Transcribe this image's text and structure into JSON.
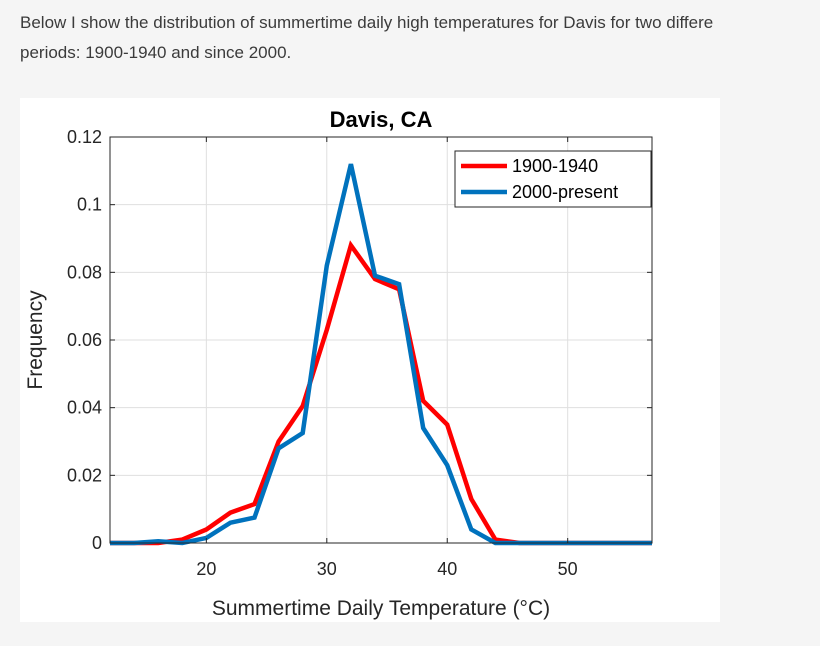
{
  "intro": {
    "line1": "Below I show the distribution of summertime daily high temperatures for Davis for two differe",
    "line2": "periods: 1900-1940 and since 2000."
  },
  "chart_data": {
    "type": "line",
    "title": "Davis, CA",
    "xlabel": "Summertime Daily Temperature (°C)",
    "ylabel": "Frequency",
    "xlim": [
      12,
      57
    ],
    "ylim": [
      0,
      0.12
    ],
    "xticks": [
      20,
      30,
      40,
      50
    ],
    "yticks": [
      0,
      0.02,
      0.04,
      0.06,
      0.08,
      0.1,
      0.12
    ],
    "ytick_labels": [
      "0",
      "0.02",
      "0.04",
      "0.06",
      "0.08",
      "0.1",
      "0.12"
    ],
    "grid": true,
    "legend_position": "top-right",
    "series": [
      {
        "name": "1900-1940",
        "color": "#ff0000",
        "x": [
          12,
          14,
          16,
          18,
          20,
          22,
          24,
          26,
          28,
          30,
          32,
          34,
          36,
          38,
          40,
          42,
          44,
          46,
          48,
          50,
          52,
          54,
          57
        ],
        "y": [
          0,
          0,
          0,
          0.001,
          0.004,
          0.009,
          0.0115,
          0.03,
          0.0405,
          0.063,
          0.088,
          0.078,
          0.075,
          0.042,
          0.035,
          0.013,
          0.001,
          0,
          0,
          0,
          0,
          0,
          0
        ]
      },
      {
        "name": "2000-present",
        "color": "#0072bd",
        "x": [
          12,
          14,
          16,
          18,
          20,
          22,
          24,
          26,
          28,
          30,
          32,
          34,
          36,
          38,
          40,
          42,
          44,
          46,
          48,
          50,
          52,
          54,
          57
        ],
        "y": [
          0,
          0,
          0.0005,
          0,
          0.0015,
          0.006,
          0.0075,
          0.028,
          0.0325,
          0.082,
          0.112,
          0.079,
          0.0765,
          0.034,
          0.023,
          0.004,
          0,
          0,
          0,
          0,
          0,
          0,
          0
        ]
      }
    ]
  }
}
